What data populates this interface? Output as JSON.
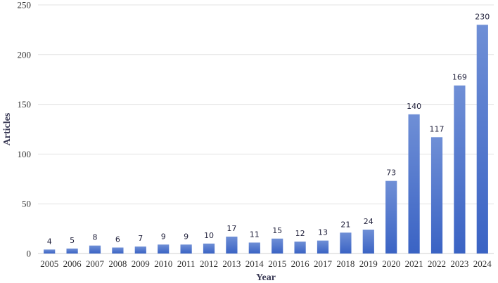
{
  "chart_data": {
    "type": "bar",
    "categories": [
      "2005",
      "2006",
      "2007",
      "2008",
      "2009",
      "2010",
      "2011",
      "2012",
      "2013",
      "2014",
      "2015",
      "2016",
      "2017",
      "2018",
      "2019",
      "2020",
      "2021",
      "2022",
      "2023",
      "2024"
    ],
    "values": [
      4,
      5,
      8,
      6,
      7,
      9,
      9,
      10,
      17,
      11,
      15,
      12,
      13,
      21,
      24,
      73,
      140,
      117,
      169,
      230
    ],
    "title": "",
    "xlabel": "Year",
    "ylabel": "Articles",
    "ylim": [
      0,
      250
    ],
    "yticks": [
      0,
      50,
      100,
      150,
      200,
      250
    ],
    "grid": true,
    "legend": "none",
    "bar_color_top": "#6f8fd6",
    "bar_color_bottom": "#3a63c4"
  }
}
